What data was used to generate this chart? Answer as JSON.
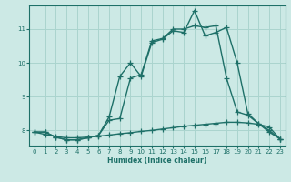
{
  "xlabel": "Humidex (Indice chaleur)",
  "bg_color": "#cce9e5",
  "line_color": "#1e7068",
  "grid_color": "#aad4ce",
  "xlim": [
    -0.5,
    23.5
  ],
  "ylim": [
    7.55,
    11.7
  ],
  "yticks": [
    8,
    9,
    10,
    11
  ],
  "xticks": [
    0,
    1,
    2,
    3,
    4,
    5,
    6,
    7,
    8,
    9,
    10,
    11,
    12,
    13,
    14,
    15,
    16,
    17,
    18,
    19,
    20,
    21,
    22,
    23
  ],
  "line1_x": [
    0,
    1,
    2,
    3,
    4,
    5,
    6,
    7,
    8,
    9,
    10,
    11,
    12,
    13,
    14,
    15,
    16,
    17,
    18,
    19,
    20,
    21,
    22,
    23
  ],
  "line1_y": [
    7.95,
    7.95,
    7.8,
    7.72,
    7.72,
    7.78,
    7.85,
    8.4,
    9.6,
    10.0,
    9.6,
    10.6,
    10.7,
    10.95,
    10.9,
    11.55,
    10.8,
    10.9,
    11.05,
    10.0,
    8.5,
    8.2,
    8.0,
    7.75
  ],
  "line2_x": [
    0,
    1,
    2,
    3,
    4,
    5,
    6,
    7,
    8,
    9,
    10,
    11,
    12,
    13,
    14,
    15,
    16,
    17,
    18,
    19,
    20,
    21,
    22,
    23
  ],
  "line2_y": [
    7.95,
    7.95,
    7.8,
    7.72,
    7.72,
    7.78,
    7.85,
    8.3,
    8.35,
    9.55,
    9.65,
    10.65,
    10.72,
    11.0,
    11.0,
    11.1,
    11.05,
    11.1,
    9.55,
    8.55,
    8.45,
    8.2,
    7.95,
    7.75
  ],
  "line3_x": [
    0,
    1,
    2,
    3,
    4,
    5,
    6,
    7,
    8,
    9,
    10,
    11,
    12,
    13,
    14,
    15,
    16,
    17,
    18,
    19,
    20,
    21,
    22,
    23
  ],
  "line3_y": [
    7.95,
    7.88,
    7.82,
    7.78,
    7.78,
    7.8,
    7.83,
    7.86,
    7.9,
    7.93,
    7.97,
    8.0,
    8.04,
    8.08,
    8.12,
    8.15,
    8.18,
    8.21,
    8.24,
    8.24,
    8.22,
    8.18,
    8.1,
    7.75
  ],
  "marker": "+",
  "markersize": 4,
  "linewidth": 1.0
}
